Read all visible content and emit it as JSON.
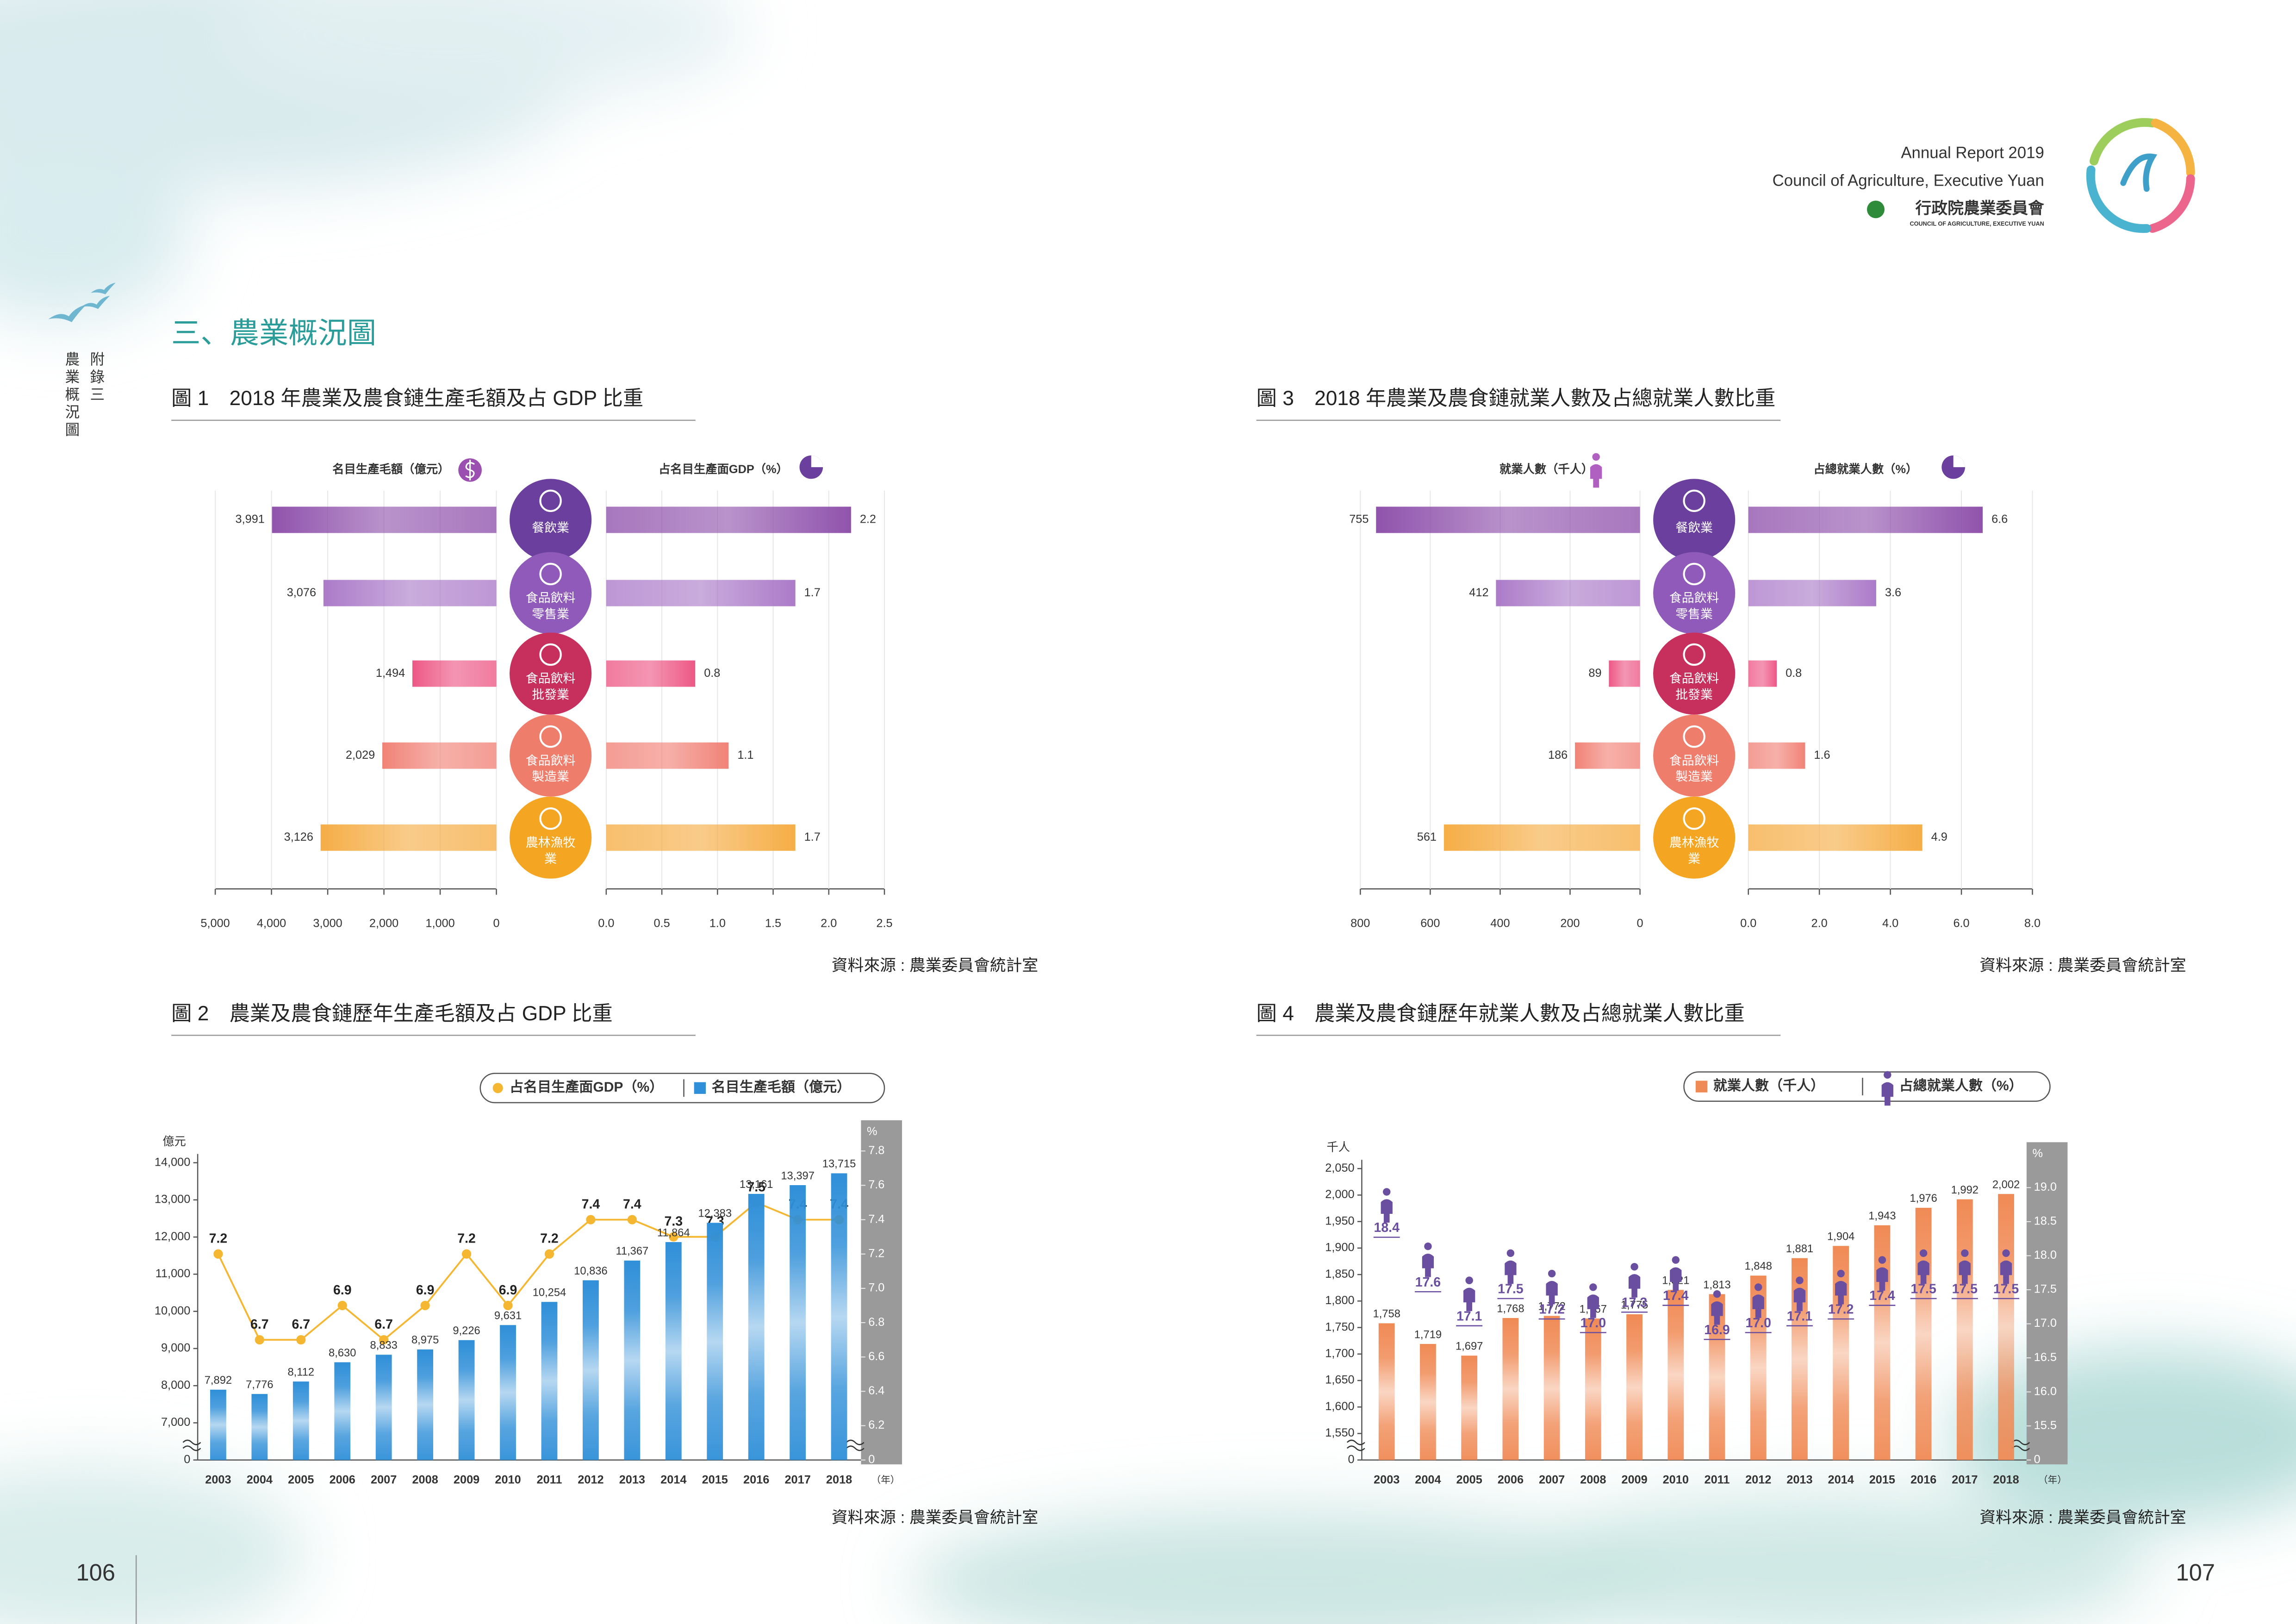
{
  "header": {
    "report": "Annual Report 2019",
    "council": "Council of Agriculture, Executive Yuan",
    "council_zh": "行政院農業委員會",
    "council_en": "COUNCIL OF AGRICULTURE, EXECUTIVE YUAN"
  },
  "side": {
    "appendix": "附錄三",
    "section": "農業概況圖"
  },
  "section_title": "三、農業概況圖",
  "page_numbers": [
    "106",
    "107"
  ],
  "chart_data": [
    {
      "type": "butterfly",
      "title": "圖 1　2018 年農業及農食鏈生產毛額及占 GDP 比重",
      "source": "資料來源 : 農業委員會統計室",
      "categories": [
        "餐飲業",
        "食品飲料零售業",
        "食品飲料批發業",
        "食品飲料製造業",
        "農林漁牧業"
      ],
      "category_colors": [
        "#6b3f9e",
        "#8f5ab9",
        "#c72f5c",
        "#ef7d6b",
        "#f4a622"
      ],
      "colors": [
        "#8a4aa8",
        "#a774c6",
        "#ec4f80",
        "#f07c70",
        "#f5a93c"
      ],
      "series": [
        {
          "name": "名目生產毛額（億元）",
          "values": [
            3991,
            3076,
            1494,
            2029,
            3126
          ],
          "value_labels": [
            "3,991",
            "3,076",
            "1,494",
            "2,029",
            "3,126"
          ]
        },
        {
          "name": "占名目生產面GDP（%）",
          "values": [
            2.2,
            1.7,
            0.8,
            1.1,
            1.7
          ]
        }
      ],
      "xlim": [
        5000,
        0
      ],
      "xticks": [
        {
          "value": 5000,
          "label": "5,000"
        },
        {
          "value": 4000,
          "label": "4,000"
        },
        {
          "value": 3000,
          "label": "3,000"
        },
        {
          "value": 2000,
          "label": "2,000"
        },
        {
          "value": 1000,
          "label": "1,000"
        },
        0
      ],
      "x2lim": [
        0,
        2.5
      ],
      "x2ticks": [
        {
          "value": 0,
          "label": "0.0"
        },
        0.5,
        {
          "value": 1,
          "label": "1.0"
        },
        1.5,
        {
          "value": 2,
          "label": "2.0"
        },
        2.5
      ]
    },
    {
      "type": "combo",
      "title": "圖 2　農業及農食鏈歷年生產毛額及占 GDP 比重",
      "source": "資料來源 : 農業委員會統計室",
      "categories": [
        "2003",
        "2004",
        "2005",
        "2006",
        "2007",
        "2008",
        "2009",
        "2010",
        "2011",
        "2012",
        "2013",
        "2014",
        "2015",
        "2016",
        "2017",
        "2018"
      ],
      "x_unit": "（年）",
      "y_unit": "億元",
      "y2_unit": "%",
      "axis_break": true,
      "series": [
        {
          "name": "占名目生產面GDP（%）",
          "color": "#f5b731",
          "axis": "y2",
          "marker": "dot",
          "values": [
            7.2,
            6.7,
            6.7,
            6.9,
            6.7,
            6.9,
            7.2,
            6.9,
            7.2,
            7.4,
            7.4,
            7.3,
            7.3,
            7.5,
            7.4,
            7.4
          ]
        },
        {
          "name": "名目生產毛額（億元）",
          "color": "#2f8fd8",
          "values": [
            7892,
            7776,
            8112,
            8630,
            8833,
            8975,
            9226,
            9631,
            10254,
            10836,
            11367,
            11864,
            12383,
            13161,
            13397,
            13715
          ],
          "value_labels": [
            "7,892",
            "7,776",
            "8,112",
            "8,630",
            "8,833",
            "8,975",
            "9,226",
            "9,631",
            "10,254",
            "10,836",
            "11,367",
            "11,864",
            "12,383",
            "13,161",
            "13,397",
            "13,715"
          ]
        }
      ],
      "ylim": [
        0,
        14000
      ],
      "yticks": [
        0,
        {
          "value": 7000,
          "label": "7,000"
        },
        {
          "value": 8000,
          "label": "8,000"
        },
        {
          "value": 9000,
          "label": "9,000"
        },
        {
          "value": 10000,
          "label": "10,000"
        },
        {
          "value": 11000,
          "label": "11,000"
        },
        {
          "value": 12000,
          "label": "12,000"
        },
        {
          "value": 13000,
          "label": "13,000"
        },
        {
          "value": 14000,
          "label": "14,000"
        }
      ],
      "y2lim": [
        0,
        7.8
      ],
      "y2ticks": [
        0,
        6.2,
        6.4,
        6.6,
        6.8,
        {
          "value": 7,
          "label": "7.0"
        },
        7.2,
        7.4,
        7.6,
        7.8
      ]
    },
    {
      "type": "butterfly",
      "title": "圖 3　2018 年農業及農食鏈就業人數及占總就業人數比重",
      "source": "資料來源 : 農業委員會統計室",
      "categories": [
        "餐飲業",
        "食品飲料零售業",
        "食品飲料批發業",
        "食品飲料製造業",
        "農林漁牧業"
      ],
      "category_colors": [
        "#6b3f9e",
        "#8f5ab9",
        "#c72f5c",
        "#ef7d6b",
        "#f4a622"
      ],
      "colors": [
        "#8a4aa8",
        "#a774c6",
        "#ec4f80",
        "#f07c70",
        "#f5a93c"
      ],
      "series": [
        {
          "name": "就業人數（千人）",
          "values": [
            755,
            412,
            89,
            186,
            561
          ]
        },
        {
          "name": "占總就業人數（%）",
          "values": [
            6.6,
            3.6,
            0.8,
            1.6,
            4.9
          ]
        }
      ],
      "xlim": [
        800,
        0
      ],
      "xticks": [
        800,
        600,
        400,
        200,
        0
      ],
      "x2lim": [
        0,
        8
      ],
      "x2ticks": [
        {
          "value": 0,
          "label": "0.0"
        },
        {
          "value": 2,
          "label": "2.0"
        },
        {
          "value": 4,
          "label": "4.0"
        },
        {
          "value": 6,
          "label": "6.0"
        },
        {
          "value": 8,
          "label": "8.0"
        }
      ]
    },
    {
      "type": "combo",
      "title": "圖 4　農業及農食鏈歷年就業人數及占總就業人數比重",
      "source": "資料來源 : 農業委員會統計室",
      "categories": [
        "2003",
        "2004",
        "2005",
        "2006",
        "2007",
        "2008",
        "2009",
        "2010",
        "2011",
        "2012",
        "2013",
        "2014",
        "2015",
        "2016",
        "2017",
        "2018"
      ],
      "x_unit": "（年）",
      "y_unit": "千人",
      "y2_unit": "%",
      "axis_break": true,
      "series": [
        {
          "name": "就業人數（千人）",
          "color": "#f08a55",
          "values": [
            1758,
            1719,
            1697,
            1768,
            1772,
            1767,
            1775,
            1821,
            1813,
            1848,
            1881,
            1904,
            1943,
            1976,
            1992,
            2002
          ],
          "value_labels": [
            "1,758",
            "1,719",
            "1,697",
            "1,768",
            "1,772",
            "1,767",
            "1,775",
            "1,821",
            "1,813",
            "1,848",
            "1,881",
            "1,904",
            "1,943",
            "1,976",
            "1,992",
            "2,002"
          ]
        },
        {
          "name": "占總就業人數（%）",
          "color": "#6a4ea0",
          "axis": "y2",
          "marker": "person",
          "values": [
            18.4,
            17.6,
            17.1,
            17.5,
            17.2,
            17.0,
            17.3,
            17.4,
            16.9,
            17.0,
            17.1,
            17.2,
            17.4,
            17.5,
            17.5,
            17.5
          ],
          "value_labels": [
            "18.4",
            "17.6",
            "17.1",
            "17.5",
            "17.2",
            "17.0",
            "17.3",
            "17.4",
            "16.9",
            "17.0",
            "17.1",
            "17.2",
            "17.4",
            "17.5",
            "17.5",
            "17.5"
          ]
        }
      ],
      "ylim": [
        0,
        2050
      ],
      "yticks": [
        0,
        {
          "value": 1550,
          "label": "1,550"
        },
        {
          "value": 1600,
          "label": "1,600"
        },
        {
          "value": 1650,
          "label": "1,650"
        },
        {
          "value": 1700,
          "label": "1,700"
        },
        {
          "value": 1750,
          "label": "1,750"
        },
        {
          "value": 1800,
          "label": "1,800"
        },
        {
          "value": 1850,
          "label": "1,850"
        },
        {
          "value": 1900,
          "label": "1,900"
        },
        {
          "value": 1950,
          "label": "1,950"
        },
        {
          "value": 2000,
          "label": "2,000"
        },
        {
          "value": 2050,
          "label": "2,050"
        }
      ],
      "y2lim": [
        0,
        19
      ],
      "y2ticks": [
        0,
        15.5,
        {
          "value": 16,
          "label": "16.0"
        },
        16.5,
        {
          "value": 17,
          "label": "17.0"
        },
        17.5,
        {
          "value": 18,
          "label": "18.0"
        },
        18.5,
        {
          "value": 19,
          "label": "19.0"
        }
      ]
    }
  ]
}
